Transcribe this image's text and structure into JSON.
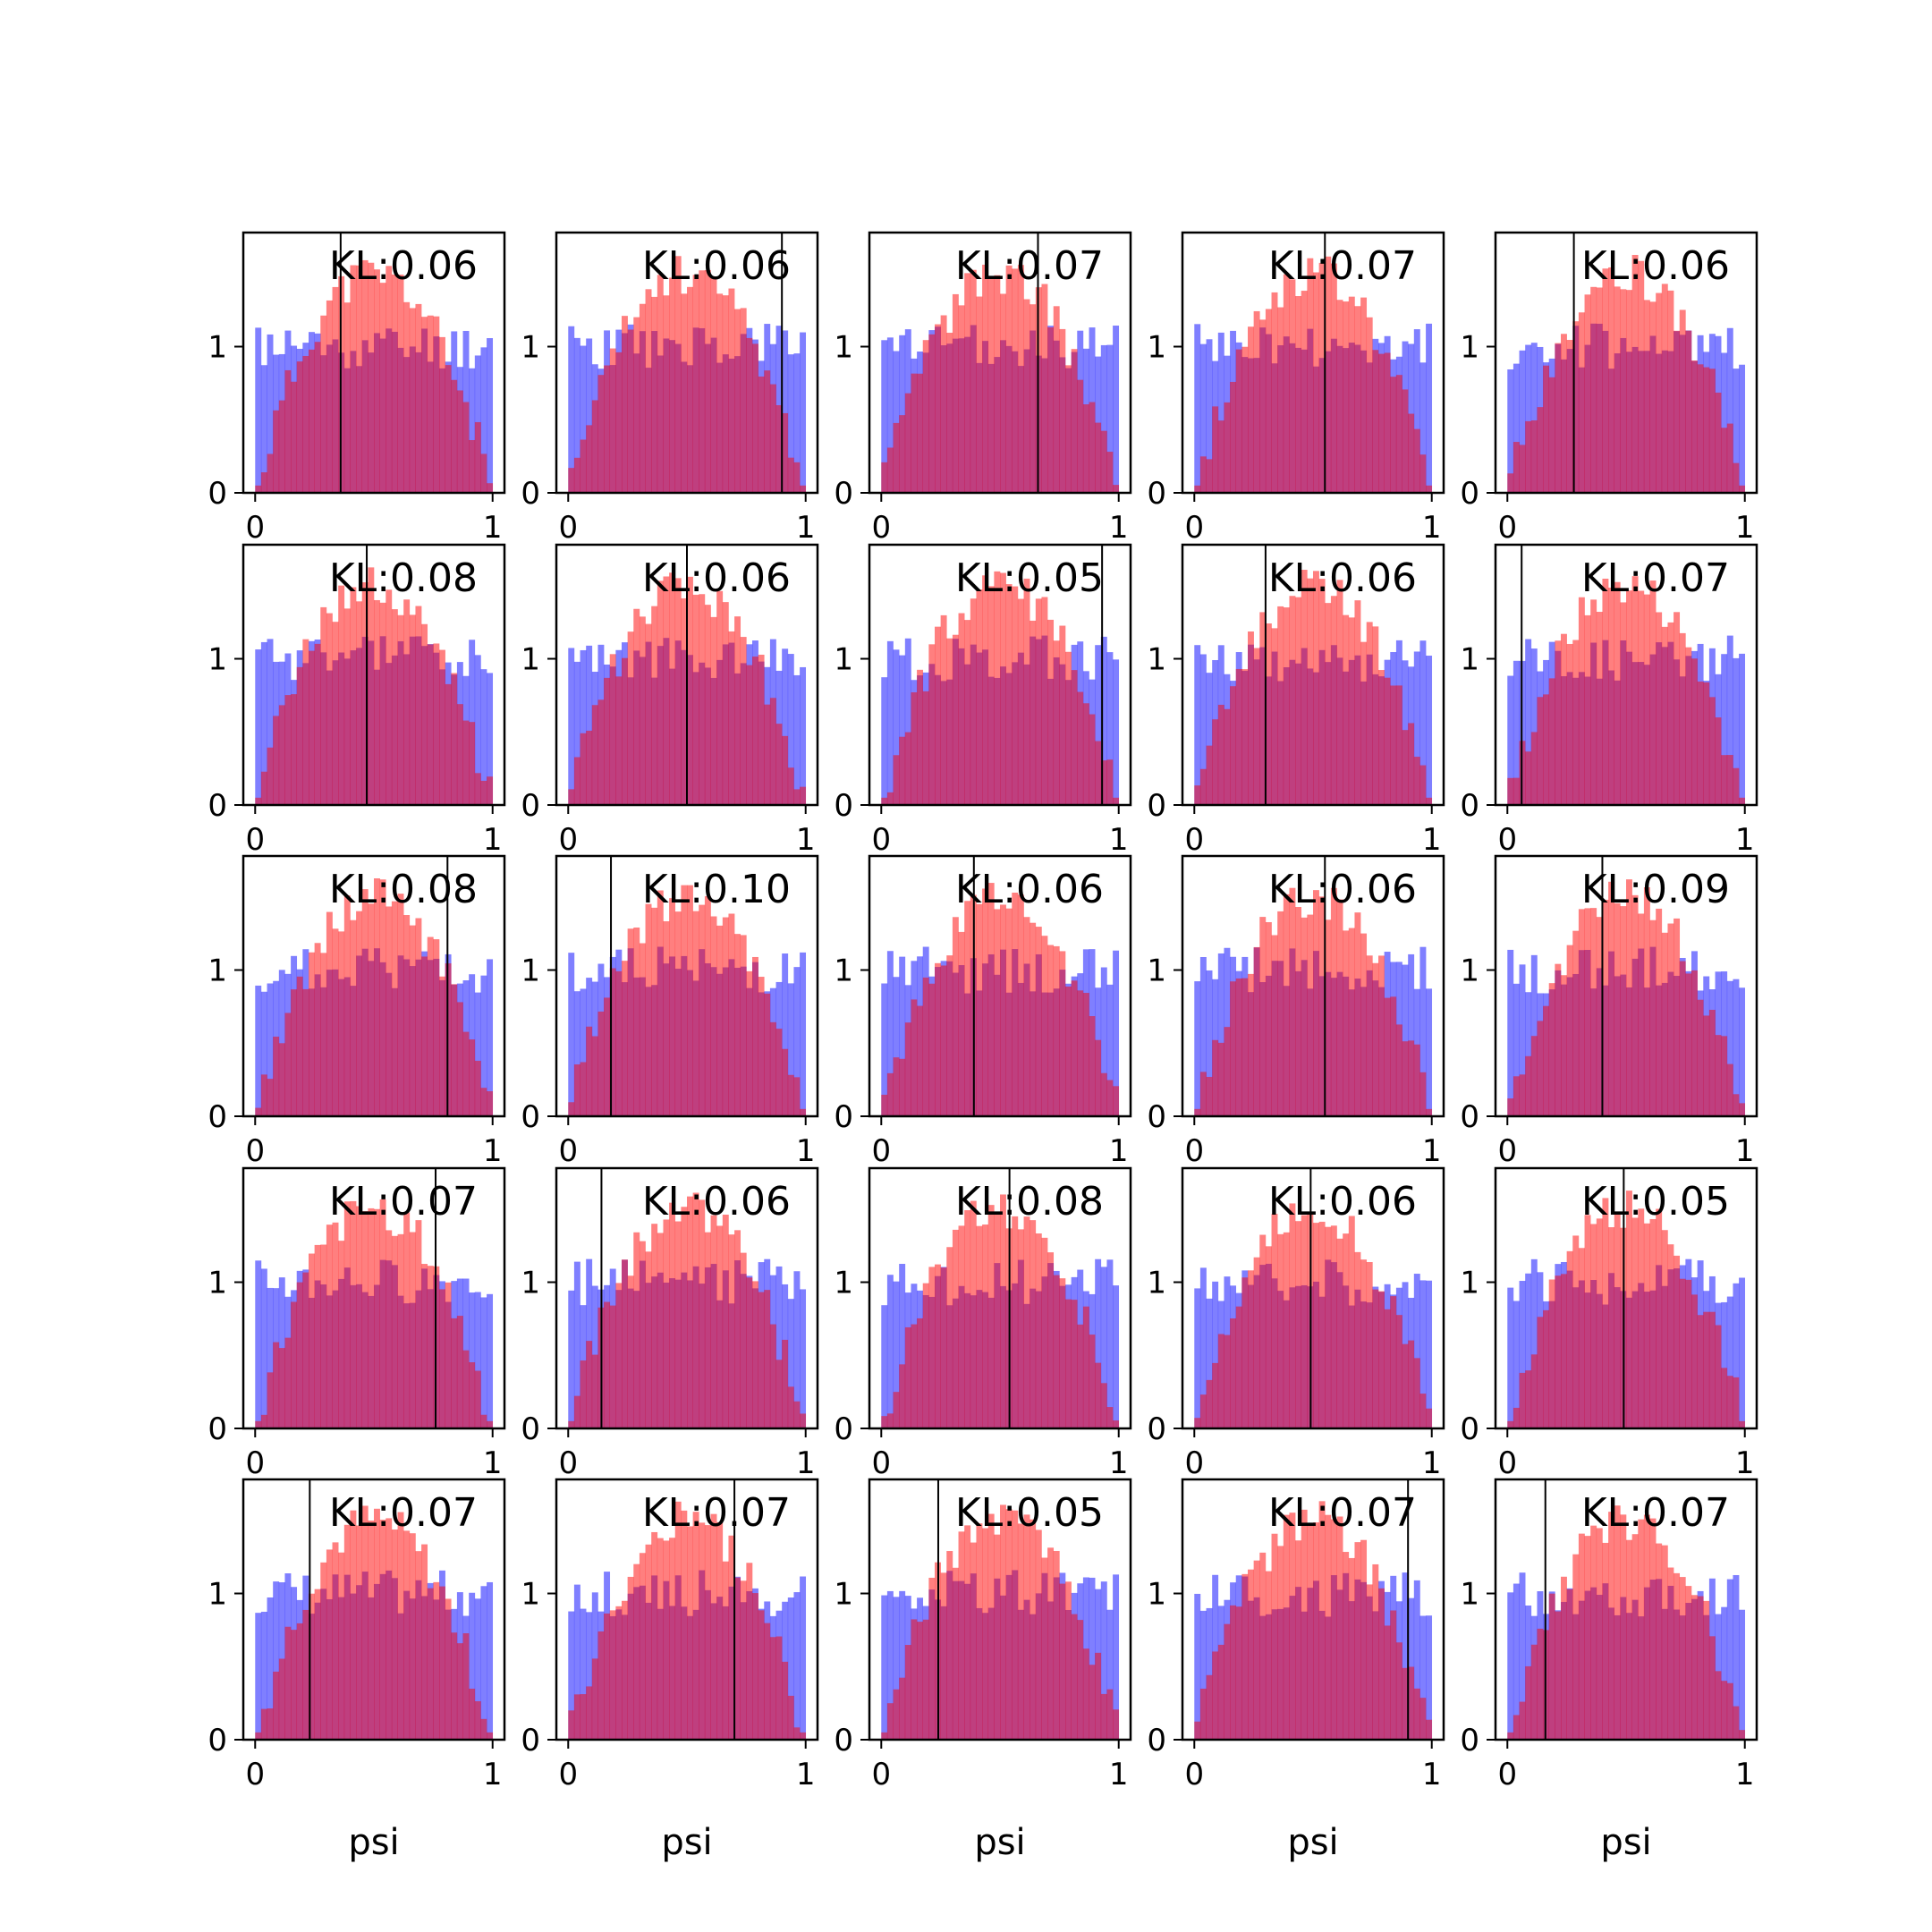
{
  "figure": {
    "background": "#ffffff"
  },
  "colors": {
    "prior": "#0000ff",
    "posterior": "#ff0000",
    "opacity": 0.5,
    "marker_line": "#000000"
  },
  "chart_data": {
    "type": "bar",
    "layout": {
      "rows": 5,
      "cols": 5
    },
    "description_of_series": "Each panel overlays two normalized histograms over psi in [0,1] with 40 bins and one vertical marker line.",
    "xlabel": "psi",
    "x_ticks": [
      "0",
      "1"
    ],
    "y_ticks": [
      "0",
      "1"
    ],
    "xlim": [
      -0.05,
      1.05
    ],
    "ylim": [
      0,
      1.78
    ],
    "bins": 40,
    "series_colors": [
      "#0000ff",
      "#ff0000"
    ],
    "panels": [
      {
        "kl_label": "KL:0.06",
        "marker_x": 0.36,
        "seed": 11
      },
      {
        "kl_label": "KL:0.06",
        "marker_x": 0.9,
        "seed": 23
      },
      {
        "kl_label": "KL:0.07",
        "marker_x": 0.66,
        "seed": 37
      },
      {
        "kl_label": "KL:0.07",
        "marker_x": 0.55,
        "seed": 41
      },
      {
        "kl_label": "KL:0.06",
        "marker_x": 0.28,
        "seed": 53
      },
      {
        "kl_label": "KL:0.08",
        "marker_x": 0.47,
        "seed": 61
      },
      {
        "kl_label": "KL:0.06",
        "marker_x": 0.5,
        "seed": 73
      },
      {
        "kl_label": "KL:0.05",
        "marker_x": 0.93,
        "seed": 89
      },
      {
        "kl_label": "KL:0.06",
        "marker_x": 0.3,
        "seed": 97
      },
      {
        "kl_label": "KL:0.07",
        "marker_x": 0.06,
        "seed": 101
      },
      {
        "kl_label": "KL:0.08",
        "marker_x": 0.81,
        "seed": 113
      },
      {
        "kl_label": "KL:0.10",
        "marker_x": 0.18,
        "seed": 127
      },
      {
        "kl_label": "KL:0.06",
        "marker_x": 0.39,
        "seed": 131
      },
      {
        "kl_label": "KL:0.06",
        "marker_x": 0.55,
        "seed": 149
      },
      {
        "kl_label": "KL:0.09",
        "marker_x": 0.4,
        "seed": 151
      },
      {
        "kl_label": "KL:0.07",
        "marker_x": 0.76,
        "seed": 163
      },
      {
        "kl_label": "KL:0.06",
        "marker_x": 0.14,
        "seed": 173
      },
      {
        "kl_label": "KL:0.08",
        "marker_x": 0.54,
        "seed": 181
      },
      {
        "kl_label": "KL:0.06",
        "marker_x": 0.49,
        "seed": 191
      },
      {
        "kl_label": "KL:0.05",
        "marker_x": 0.49,
        "seed": 197
      },
      {
        "kl_label": "KL:0.07",
        "marker_x": 0.23,
        "seed": 211
      },
      {
        "kl_label": "KL:0.07",
        "marker_x": 0.7,
        "seed": 223
      },
      {
        "kl_label": "KL:0.05",
        "marker_x": 0.24,
        "seed": 227
      },
      {
        "kl_label": "KL:0.07",
        "marker_x": 0.9,
        "seed": 239
      },
      {
        "kl_label": "KL:0.07",
        "marker_x": 0.16,
        "seed": 251
      }
    ]
  }
}
